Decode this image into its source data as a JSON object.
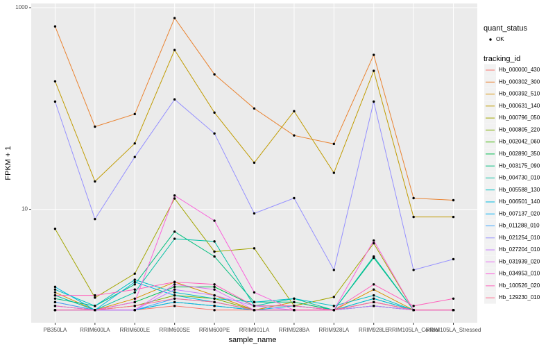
{
  "chart_data": {
    "type": "line",
    "x_label": "sample_name",
    "y_label": "FPKM + 1",
    "log_y": true,
    "grid": true,
    "ylim": [
      0.75,
      1100
    ],
    "yticks": [
      10,
      1000
    ],
    "categories": [
      "PB350LA",
      "RRIM600LA",
      "RRIM600LE",
      "RRIM600SE",
      "RRIM600PE",
      "RRIM901LA",
      "RRIM928BA",
      "RRIM928LA",
      "RRIM928LE",
      "RRIM105LA_Control",
      "RRIM105LA_Stressed"
    ],
    "shape_legend": {
      "title": "quant_status",
      "labels": [
        "OK"
      ]
    },
    "legend_title": "tracking_id",
    "series": [
      {
        "name": "Hb_000000_430",
        "color": "#F8766D",
        "values": [
          1.2,
          1,
          1,
          1.1,
          1,
          1,
          1,
          1,
          1.1,
          1,
          1
        ]
      },
      {
        "name": "Hb_000302_300",
        "color": "#EA8331",
        "values": [
          651,
          66,
          88,
          788,
          218,
          100,
          54,
          44.5,
          340,
          12.9,
          12.3
        ]
      },
      {
        "name": "Hb_000392_510",
        "color": "#D89000",
        "values": [
          1.5,
          1,
          1.3,
          1.9,
          1.4,
          1,
          1.2,
          1,
          1.6,
          1,
          1
        ]
      },
      {
        "name": "Hb_000631_140",
        "color": "#C09B00",
        "values": [
          186,
          18.9,
          45,
          380,
          91,
          29,
          94,
          23,
          236,
          8.4,
          8.4
        ]
      },
      {
        "name": "Hb_000796_050",
        "color": "#A3A500",
        "values": [
          6.4,
          1.33,
          2.3,
          12.8,
          3.8,
          4.1,
          1.1,
          1.35,
          4.6,
          1,
          1
        ]
      },
      {
        "name": "Hb_000805_220",
        "color": "#7CAE00",
        "values": [
          1,
          1,
          1.1,
          1.4,
          1.3,
          1,
          1,
          1,
          1.2,
          1,
          1
        ]
      },
      {
        "name": "Hb_002042_060",
        "color": "#39B600",
        "values": [
          1.1,
          1,
          1,
          1.2,
          1.1,
          1,
          1,
          1,
          1.1,
          1,
          1
        ]
      },
      {
        "name": "Hb_002890_350",
        "color": "#00BB4E",
        "values": [
          1,
          1,
          1.2,
          1.7,
          1.7,
          1.1,
          1.1,
          1,
          1.3,
          1,
          1
        ]
      },
      {
        "name": "Hb_003175_090",
        "color": "#00BF7D",
        "values": [
          1.3,
          1.1,
          1.8,
          6.0,
          3.4,
          1.2,
          1.2,
          1,
          3.3,
          1,
          1
        ]
      },
      {
        "name": "Hb_004730_010",
        "color": "#00C1A3",
        "values": [
          1.4,
          1,
          1.5,
          5.1,
          4.8,
          1.1,
          1.3,
          1,
          3.4,
          1,
          1
        ]
      },
      {
        "name": "Hb_005588_130",
        "color": "#00BFC4",
        "values": [
          1.6,
          1.1,
          2.0,
          1.5,
          1.3,
          1.2,
          1.3,
          1.1,
          1.4,
          1,
          1
        ]
      },
      {
        "name": "Hb_006501_140",
        "color": "#00BAE0",
        "values": [
          1.7,
          1.0,
          1.9,
          1.4,
          1.2,
          1,
          1.1,
          1,
          1.3,
          1,
          1
        ]
      },
      {
        "name": "Hb_007137_020",
        "color": "#00B0F6",
        "values": [
          1,
          1,
          1,
          1.2,
          1.1,
          1,
          1,
          1,
          1.1,
          1,
          1
        ]
      },
      {
        "name": "Hb_011288_010",
        "color": "#35A2FF",
        "values": [
          1.2,
          1,
          1,
          1.3,
          1.2,
          1,
          1,
          1,
          1.2,
          1,
          1
        ]
      },
      {
        "name": "Hb_021254_010",
        "color": "#9590FF",
        "values": [
          117,
          8.0,
          33,
          123,
          56.5,
          9.1,
          12.9,
          2.5,
          117,
          2.5,
          3.2
        ]
      },
      {
        "name": "Hb_027204_010",
        "color": "#C77CFF",
        "values": [
          1,
          1,
          1,
          1.6,
          1.4,
          1.1,
          1,
          1,
          1.1,
          1,
          1
        ]
      },
      {
        "name": "Hb_031939_020",
        "color": "#E76BF3",
        "values": [
          1,
          1,
          1,
          1.8,
          1.6,
          1,
          1,
          1,
          1.2,
          1,
          1
        ]
      },
      {
        "name": "Hb_034953_010",
        "color": "#FA62DB",
        "values": [
          1.1,
          1,
          1.2,
          13.7,
          7.7,
          1.5,
          1,
          1,
          4.9,
          1,
          1
        ]
      },
      {
        "name": "Hb_100526_020",
        "color": "#FF62BC",
        "values": [
          1.4,
          1.4,
          1.6,
          1.9,
          1.8,
          1.1,
          1.1,
          1,
          1.8,
          1.1,
          1.3
        ]
      },
      {
        "name": "Hb_129230_010",
        "color": "#FF6C91",
        "values": [
          1,
          1,
          1.1,
          1.3,
          1.2,
          1,
          1,
          1,
          1.2,
          1,
          1
        ]
      }
    ]
  }
}
